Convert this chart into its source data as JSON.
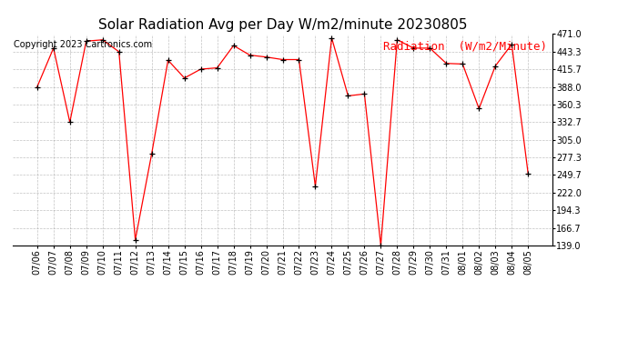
{
  "title": "Solar Radiation Avg per Day W/m2/minute 20230805",
  "copyright": "Copyright 2023 Cartronics.com",
  "legend_label": "Radiation  (W/m2/Minute)",
  "dates": [
    "07/06",
    "07/07",
    "07/08",
    "07/09",
    "07/10",
    "07/11",
    "07/12",
    "07/13",
    "07/14",
    "07/15",
    "07/16",
    "07/17",
    "07/18",
    "07/19",
    "07/20",
    "07/21",
    "07/22",
    "07/23",
    "07/24",
    "07/25",
    "07/26",
    "07/27",
    "07/28",
    "07/29",
    "07/30",
    "07/31",
    "08/01",
    "08/02",
    "08/03",
    "08/04",
    "08/05"
  ],
  "values": [
    388.0,
    449.0,
    332.7,
    460.0,
    462.0,
    443.3,
    148.0,
    283.0,
    430.0,
    402.0,
    416.0,
    418.0,
    453.0,
    438.0,
    435.0,
    431.0,
    431.0,
    232.0,
    465.0,
    374.0,
    377.0,
    139.0,
    462.0,
    449.0,
    449.0,
    425.0,
    424.0,
    354.0,
    421.0,
    455.0,
    252.0
  ],
  "ylim": [
    139.0,
    471.0
  ],
  "yticks": [
    471.0,
    443.3,
    415.7,
    388.0,
    360.3,
    332.7,
    305.0,
    277.3,
    249.7,
    222.0,
    194.3,
    166.7,
    139.0
  ],
  "line_color": "red",
  "marker_color": "black",
  "background_color": "#ffffff",
  "grid_color": "#999999",
  "title_fontsize": 11,
  "tick_fontsize": 7,
  "copyright_fontsize": 7,
  "legend_fontsize": 9
}
